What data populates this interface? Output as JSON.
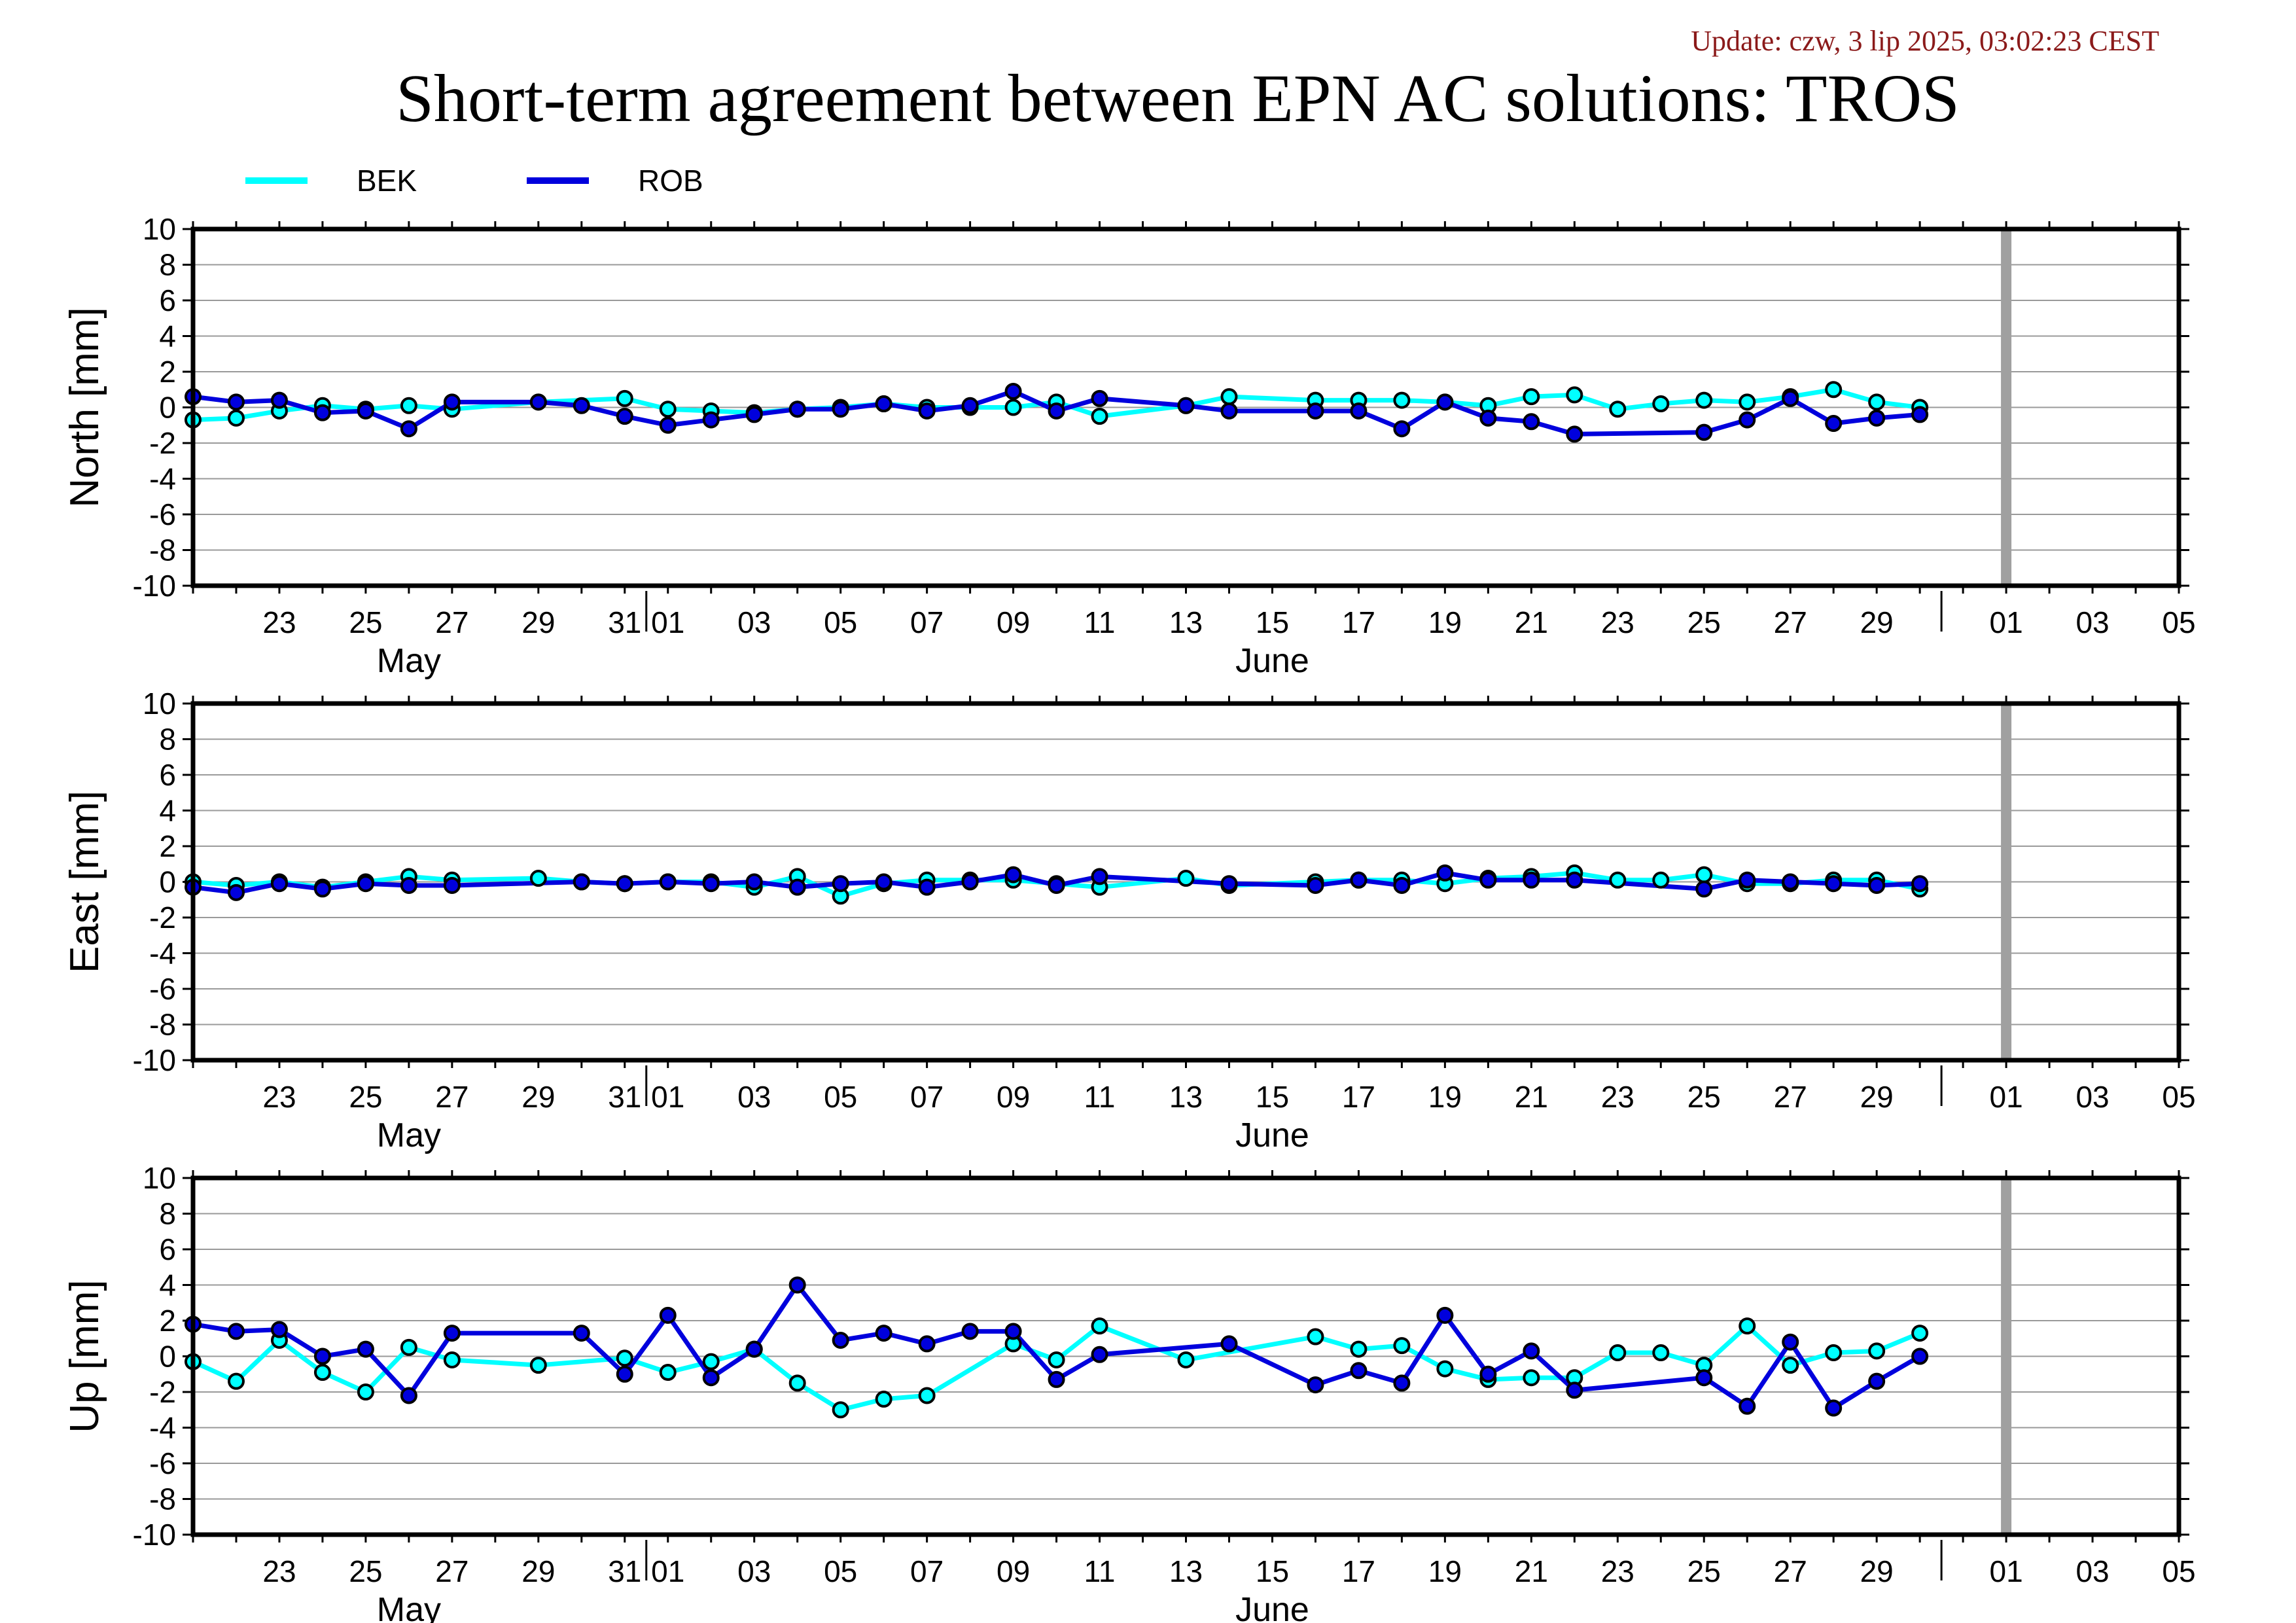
{
  "header": {
    "update": "Update: czw, 3 lip 2025, 03:02:23 CEST",
    "title": "Short-term agreement between EPN AC solutions: TROS"
  },
  "colors": {
    "BEK": "#00ffff",
    "ROB": "#0000dd",
    "today_marker": "#a0a0a0",
    "update_text": "#8b1a1a"
  },
  "chart_data": [
    {
      "type": "line",
      "ylabel": "North [mm]",
      "ylim": [
        -10,
        10
      ],
      "yticks": [
        10,
        8,
        6,
        4,
        2,
        0,
        -2,
        -4,
        -6,
        -8,
        -10
      ],
      "xlim": [
        "2025-05-21",
        "2025-07-06"
      ],
      "xtick_labels": [
        "23",
        "25",
        "27",
        "29",
        "31",
        "01",
        "03",
        "05",
        "07",
        "09",
        "11",
        "13",
        "15",
        "17",
        "19",
        "21",
        "23",
        "25",
        "27",
        "29",
        "01",
        "03",
        "05"
      ],
      "month_labels": [
        "May",
        "June"
      ],
      "today_marker": "2025-07-02",
      "grid": true,
      "legend": "top-left",
      "series": [
        {
          "name": "BEK",
          "points": [
            [
              "2025-05-21",
              -0.7
            ],
            [
              "2025-05-22",
              -0.6
            ],
            [
              "2025-05-23",
              -0.2
            ],
            [
              "2025-05-24",
              0.1
            ],
            [
              "2025-05-25",
              -0.1
            ],
            [
              "2025-05-26",
              0.1
            ],
            [
              "2025-05-27",
              -0.1
            ],
            [
              "2025-05-29",
              0.3
            ],
            [
              "2025-05-31",
              0.5
            ],
            [
              "2025-06-01",
              -0.1
            ],
            [
              "2025-06-02",
              -0.2
            ],
            [
              "2025-06-03",
              -0.3
            ],
            [
              "2025-06-04",
              -0.1
            ],
            [
              "2025-06-05",
              0
            ],
            [
              "2025-06-06",
              0.2
            ],
            [
              "2025-06-07",
              0
            ],
            [
              "2025-06-08",
              0
            ],
            [
              "2025-06-09",
              0
            ],
            [
              "2025-06-10",
              0.3
            ],
            [
              "2025-06-11",
              -0.5
            ],
            [
              "2025-06-13",
              0.1
            ],
            [
              "2025-06-14",
              0.6
            ],
            [
              "2025-06-16",
              0.4
            ],
            [
              "2025-06-17",
              0.4
            ],
            [
              "2025-06-18",
              0.4
            ],
            [
              "2025-06-19",
              0.3
            ],
            [
              "2025-06-20",
              0.1
            ],
            [
              "2025-06-21",
              0.6
            ],
            [
              "2025-06-22",
              0.7
            ],
            [
              "2025-06-23",
              -0.1
            ],
            [
              "2025-06-24",
              0.2
            ],
            [
              "2025-06-25",
              0.4
            ],
            [
              "2025-06-26",
              0.3
            ],
            [
              "2025-06-27",
              0.6
            ],
            [
              "2025-06-28",
              1.0
            ],
            [
              "2025-06-29",
              0.3
            ],
            [
              "2025-06-30",
              0
            ]
          ]
        },
        {
          "name": "ROB",
          "points": [
            [
              "2025-05-21",
              0.6
            ],
            [
              "2025-05-22",
              0.3
            ],
            [
              "2025-05-23",
              0.4
            ],
            [
              "2025-05-24",
              -0.3
            ],
            [
              "2025-05-25",
              -0.2
            ],
            [
              "2025-05-26",
              -1.2
            ],
            [
              "2025-05-27",
              0.3
            ],
            [
              "2025-05-29",
              0.3
            ],
            [
              "2025-05-30",
              0.1
            ],
            [
              "2025-05-31",
              -0.5
            ],
            [
              "2025-06-01",
              -1.0
            ],
            [
              "2025-06-02",
              -0.7
            ],
            [
              "2025-06-03",
              -0.4
            ],
            [
              "2025-06-04",
              -0.1
            ],
            [
              "2025-06-05",
              -0.1
            ],
            [
              "2025-06-06",
              0.2
            ],
            [
              "2025-06-07",
              -0.2
            ],
            [
              "2025-06-08",
              0.1
            ],
            [
              "2025-06-09",
              0.9
            ],
            [
              "2025-06-10",
              -0.2
            ],
            [
              "2025-06-11",
              0.5
            ],
            [
              "2025-06-13",
              0.1
            ],
            [
              "2025-06-14",
              -0.2
            ],
            [
              "2025-06-16",
              -0.2
            ],
            [
              "2025-06-17",
              -0.2
            ],
            [
              "2025-06-18",
              -1.2
            ],
            [
              "2025-06-19",
              0.3
            ],
            [
              "2025-06-20",
              -0.6
            ],
            [
              "2025-06-21",
              -0.8
            ],
            [
              "2025-06-22",
              -1.5
            ],
            [
              "2025-06-25",
              -1.4
            ],
            [
              "2025-06-26",
              -0.7
            ],
            [
              "2025-06-27",
              0.5
            ],
            [
              "2025-06-28",
              -0.9
            ],
            [
              "2025-06-29",
              -0.6
            ],
            [
              "2025-06-30",
              -0.4
            ]
          ]
        }
      ]
    },
    {
      "type": "line",
      "ylabel": "East [mm]",
      "ylim": [
        -10,
        10
      ],
      "yticks": [
        10,
        8,
        6,
        4,
        2,
        0,
        -2,
        -4,
        -6,
        -8,
        -10
      ],
      "xlim": [
        "2025-05-21",
        "2025-07-06"
      ],
      "xtick_labels": [
        "23",
        "25",
        "27",
        "29",
        "31",
        "01",
        "03",
        "05",
        "07",
        "09",
        "11",
        "13",
        "15",
        "17",
        "19",
        "21",
        "23",
        "25",
        "27",
        "29",
        "01",
        "03",
        "05"
      ],
      "month_labels": [
        "May",
        "June"
      ],
      "today_marker": "2025-07-02",
      "grid": true,
      "series": [
        {
          "name": "BEK",
          "points": [
            [
              "2025-05-21",
              0
            ],
            [
              "2025-05-22",
              -0.2
            ],
            [
              "2025-05-23",
              0
            ],
            [
              "2025-05-24",
              -0.3
            ],
            [
              "2025-05-25",
              0
            ],
            [
              "2025-05-26",
              0.3
            ],
            [
              "2025-05-27",
              0.1
            ],
            [
              "2025-05-29",
              0.2
            ],
            [
              "2025-05-30",
              0
            ],
            [
              "2025-05-31",
              -0.1
            ],
            [
              "2025-06-01",
              0
            ],
            [
              "2025-06-02",
              0
            ],
            [
              "2025-06-03",
              -0.3
            ],
            [
              "2025-06-04",
              0.3
            ],
            [
              "2025-06-05",
              -0.8
            ],
            [
              "2025-06-06",
              -0.1
            ],
            [
              "2025-06-07",
              0.1
            ],
            [
              "2025-06-08",
              0.1
            ],
            [
              "2025-06-09",
              0.1
            ],
            [
              "2025-06-10",
              -0.1
            ],
            [
              "2025-06-11",
              -0.3
            ],
            [
              "2025-06-13",
              0.2
            ],
            [
              "2025-06-14",
              -0.2
            ],
            [
              "2025-06-16",
              0
            ],
            [
              "2025-06-17",
              0.1
            ],
            [
              "2025-06-18",
              0.1
            ],
            [
              "2025-06-19",
              -0.1
            ],
            [
              "2025-06-20",
              0.2
            ],
            [
              "2025-06-21",
              0.3
            ],
            [
              "2025-06-22",
              0.5
            ],
            [
              "2025-06-23",
              0.1
            ],
            [
              "2025-06-24",
              0.1
            ],
            [
              "2025-06-25",
              0.4
            ],
            [
              "2025-06-26",
              -0.1
            ],
            [
              "2025-06-27",
              -0.1
            ],
            [
              "2025-06-28",
              0.1
            ],
            [
              "2025-06-29",
              0.1
            ],
            [
              "2025-06-30",
              -0.4
            ]
          ]
        },
        {
          "name": "ROB",
          "points": [
            [
              "2025-05-21",
              -0.3
            ],
            [
              "2025-05-22",
              -0.6
            ],
            [
              "2025-05-23",
              -0.1
            ],
            [
              "2025-05-24",
              -0.4
            ],
            [
              "2025-05-25",
              -0.1
            ],
            [
              "2025-05-26",
              -0.2
            ],
            [
              "2025-05-27",
              -0.2
            ],
            [
              "2025-05-30",
              0
            ],
            [
              "2025-05-31",
              -0.1
            ],
            [
              "2025-06-01",
              0
            ],
            [
              "2025-06-02",
              -0.1
            ],
            [
              "2025-06-03",
              0
            ],
            [
              "2025-06-04",
              -0.3
            ],
            [
              "2025-06-05",
              -0.1
            ],
            [
              "2025-06-06",
              0
            ],
            [
              "2025-06-07",
              -0.3
            ],
            [
              "2025-06-08",
              0
            ],
            [
              "2025-06-09",
              0.4
            ],
            [
              "2025-06-10",
              -0.2
            ],
            [
              "2025-06-11",
              0.3
            ],
            [
              "2025-06-14",
              -0.1
            ],
            [
              "2025-06-16",
              -0.2
            ],
            [
              "2025-06-17",
              0.1
            ],
            [
              "2025-06-18",
              -0.2
            ],
            [
              "2025-06-19",
              0.5
            ],
            [
              "2025-06-20",
              0.1
            ],
            [
              "2025-06-21",
              0.1
            ],
            [
              "2025-06-22",
              0.1
            ],
            [
              "2025-06-25",
              -0.4
            ],
            [
              "2025-06-26",
              0.1
            ],
            [
              "2025-06-27",
              0
            ],
            [
              "2025-06-28",
              -0.1
            ],
            [
              "2025-06-29",
              -0.2
            ],
            [
              "2025-06-30",
              -0.1
            ]
          ]
        }
      ]
    },
    {
      "type": "line",
      "ylabel": "Up [mm]",
      "ylim": [
        -10,
        10
      ],
      "yticks": [
        10,
        8,
        6,
        4,
        2,
        0,
        -2,
        -4,
        -6,
        -8,
        -10
      ],
      "xlim": [
        "2025-05-21",
        "2025-07-06"
      ],
      "xtick_labels": [
        "23",
        "25",
        "27",
        "29",
        "31",
        "01",
        "03",
        "05",
        "07",
        "09",
        "11",
        "13",
        "15",
        "17",
        "19",
        "21",
        "23",
        "25",
        "27",
        "29",
        "01",
        "03",
        "05"
      ],
      "month_labels": [
        "May",
        "June"
      ],
      "today_marker": "2025-07-02",
      "grid": true,
      "series": [
        {
          "name": "BEK",
          "points": [
            [
              "2025-05-21",
              -0.3
            ],
            [
              "2025-05-22",
              -1.4
            ],
            [
              "2025-05-23",
              0.9
            ],
            [
              "2025-05-24",
              -0.9
            ],
            [
              "2025-05-25",
              -2.0
            ],
            [
              "2025-05-26",
              0.5
            ],
            [
              "2025-05-27",
              -0.2
            ],
            [
              "2025-05-29",
              -0.5
            ],
            [
              "2025-05-31",
              -0.1
            ],
            [
              "2025-06-01",
              -0.9
            ],
            [
              "2025-06-02",
              -0.3
            ],
            [
              "2025-06-03",
              0.4
            ],
            [
              "2025-06-04",
              -1.5
            ],
            [
              "2025-06-05",
              -3.0
            ],
            [
              "2025-06-06",
              -2.4
            ],
            [
              "2025-06-07",
              -2.2
            ],
            [
              "2025-06-09",
              0.7
            ],
            [
              "2025-06-10",
              -0.2
            ],
            [
              "2025-06-11",
              1.7
            ],
            [
              "2025-06-13",
              -0.2
            ],
            [
              "2025-06-16",
              1.1
            ],
            [
              "2025-06-17",
              0.4
            ],
            [
              "2025-06-18",
              0.6
            ],
            [
              "2025-06-19",
              -0.7
            ],
            [
              "2025-06-20",
              -1.3
            ],
            [
              "2025-06-21",
              -1.2
            ],
            [
              "2025-06-22",
              -1.2
            ],
            [
              "2025-06-23",
              0.2
            ],
            [
              "2025-06-24",
              0.2
            ],
            [
              "2025-06-25",
              -0.5
            ],
            [
              "2025-06-26",
              1.7
            ],
            [
              "2025-06-27",
              -0.5
            ],
            [
              "2025-06-28",
              0.2
            ],
            [
              "2025-06-29",
              0.3
            ],
            [
              "2025-06-30",
              1.3
            ]
          ]
        },
        {
          "name": "ROB",
          "points": [
            [
              "2025-05-21",
              1.8
            ],
            [
              "2025-05-22",
              1.4
            ],
            [
              "2025-05-23",
              1.5
            ],
            [
              "2025-05-24",
              0
            ],
            [
              "2025-05-25",
              0.4
            ],
            [
              "2025-05-26",
              -2.2
            ],
            [
              "2025-05-27",
              1.3
            ],
            [
              "2025-05-30",
              1.3
            ],
            [
              "2025-05-31",
              -1.0
            ],
            [
              "2025-06-01",
              2.3
            ],
            [
              "2025-06-02",
              -1.2
            ],
            [
              "2025-06-03",
              0.4
            ],
            [
              "2025-06-04",
              4.0
            ],
            [
              "2025-06-05",
              0.9
            ],
            [
              "2025-06-06",
              1.3
            ],
            [
              "2025-06-07",
              0.7
            ],
            [
              "2025-06-08",
              1.4
            ],
            [
              "2025-06-09",
              1.4
            ],
            [
              "2025-06-10",
              -1.3
            ],
            [
              "2025-06-11",
              0.1
            ],
            [
              "2025-06-14",
              0.7
            ],
            [
              "2025-06-16",
              -1.6
            ],
            [
              "2025-06-17",
              -0.8
            ],
            [
              "2025-06-18",
              -1.5
            ],
            [
              "2025-06-19",
              2.3
            ],
            [
              "2025-06-20",
              -1.0
            ],
            [
              "2025-06-21",
              0.3
            ],
            [
              "2025-06-22",
              -1.9
            ],
            [
              "2025-06-25",
              -1.2
            ],
            [
              "2025-06-26",
              -2.8
            ],
            [
              "2025-06-27",
              0.8
            ],
            [
              "2025-06-28",
              -2.9
            ],
            [
              "2025-06-29",
              -1.4
            ],
            [
              "2025-06-30",
              0
            ]
          ]
        }
      ]
    }
  ]
}
